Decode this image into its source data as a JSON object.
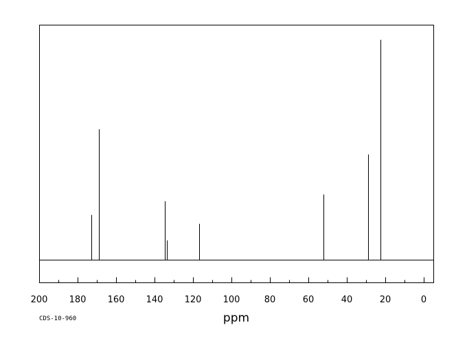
{
  "chart_data": {
    "type": "line",
    "title": "",
    "xlabel": "ppm",
    "ylabel": "",
    "xlim": [
      200,
      -5
    ],
    "x_reversed": true,
    "x_ticks": [
      "200",
      "180",
      "160",
      "140",
      "120",
      "100",
      "80",
      "60",
      "40",
      "20",
      "0"
    ],
    "x_tick_values": [
      200,
      180,
      160,
      140,
      120,
      100,
      80,
      60,
      40,
      20,
      0
    ],
    "ylim": [
      0,
      1000
    ],
    "grid": false,
    "series": [
      {
        "peaks": [
          {
            "ppm": 172.8,
            "intensity": 192
          },
          {
            "ppm": 168.9,
            "intensity": 556
          },
          {
            "ppm": 134.8,
            "intensity": 250
          },
          {
            "ppm": 133.4,
            "intensity": 84
          },
          {
            "ppm": 116.8,
            "intensity": 154
          },
          {
            "ppm": 52.1,
            "intensity": 279
          },
          {
            "ppm": 29.0,
            "intensity": 449
          },
          {
            "ppm": 22.4,
            "intensity": 936
          }
        ]
      }
    ],
    "color": "#000000"
  },
  "footer": {
    "code": "CDS-10-960"
  }
}
